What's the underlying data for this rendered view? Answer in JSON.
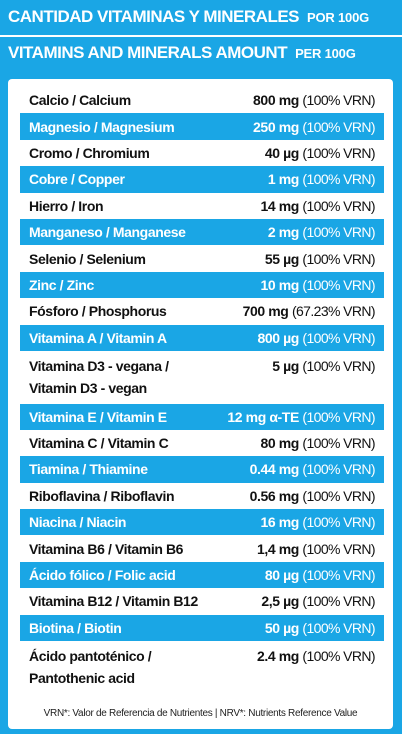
{
  "header": {
    "line1_title": "CANTIDAD VITAMINAS Y MINERALES",
    "line1_per": "POR 100G",
    "line2_title": "VITAMINS AND MINERALS AMOUNT",
    "line2_per": "PER 100G"
  },
  "rows": [
    {
      "name": "Calcio / Calcium",
      "amount": "800 mg",
      "pct": "(100% VRN)",
      "highlight": false
    },
    {
      "name": "Magnesio / Magnesium",
      "amount": "250 mg",
      "pct": "(100% VRN)",
      "highlight": true
    },
    {
      "name": "Cromo / Chromium",
      "amount": "40 µg",
      "pct": "(100% VRN)",
      "highlight": false
    },
    {
      "name": "Cobre / Copper",
      "amount": "1 mg",
      "pct": "(100% VRN)",
      "highlight": true
    },
    {
      "name": "Hierro / Iron",
      "amount": "14 mg",
      "pct": "(100% VRN)",
      "highlight": false
    },
    {
      "name": "Manganeso / Manganese",
      "amount": "2 mg",
      "pct": "(100% VRN)",
      "highlight": true
    },
    {
      "name": "Selenio / Selenium",
      "amount": "55 µg",
      "pct": "(100% VRN)",
      "highlight": false
    },
    {
      "name": "Zinc / Zinc",
      "amount": "10 mg",
      "pct": "(100% VRN)",
      "highlight": true
    },
    {
      "name": "Fósforo / Phosphorus",
      "amount": "700 mg",
      "pct": "(67.23% VRN)",
      "highlight": false
    },
    {
      "name": "Vitamina A / Vitamin A",
      "amount": "800 µg",
      "pct": "(100% VRN)",
      "highlight": true
    },
    {
      "name": "Vitamina D3 - vegana / Vitamin D3 - vegan",
      "amount": "5 µg",
      "pct": "(100% VRN)",
      "highlight": false,
      "tall": true
    },
    {
      "name": "Vitamina E / Vitamin E",
      "amount": "12 mg α-TE",
      "pct": "(100% VRN)",
      "highlight": true
    },
    {
      "name": "Vitamina C / Vitamin C",
      "amount": "80 mg",
      "pct": "(100% VRN)",
      "highlight": false
    },
    {
      "name": "Tiamina / Thiamine",
      "amount": "0.44 mg",
      "pct": "(100% VRN)",
      "highlight": true
    },
    {
      "name": "Riboflavina / Riboflavin",
      "amount": "0.56 mg",
      "pct": "(100% VRN)",
      "highlight": false
    },
    {
      "name": "Niacina / Niacin",
      "amount": "16 mg",
      "pct": "(100% VRN)",
      "highlight": true
    },
    {
      "name": "Vitamina B6 / Vitamin B6",
      "amount": "1,4 mg",
      "pct": "(100% VRN)",
      "highlight": false
    },
    {
      "name": "Ácido fólico / Folic acid",
      "amount": "80 µg",
      "pct": "(100% VRN)",
      "highlight": true
    },
    {
      "name": "Vitamina B12 / Vitamin B12",
      "amount": "2,5 µg",
      "pct": "(100% VRN)",
      "highlight": false
    },
    {
      "name": "Biotina / Biotin",
      "amount": "50 µg",
      "pct": "(100% VRN)",
      "highlight": true
    },
    {
      "name": "Ácido pantoténico / Pantothenic acid",
      "amount": "2.4 mg",
      "pct": "(100% VRN)",
      "highlight": false,
      "tall": true
    }
  ],
  "footer": "VRN*: Valor de Referencia de Nutrientes | NRV*: Nutrients Reference Value",
  "colors": {
    "accent": "#1aa6e5",
    "panel": "#ffffff",
    "text": "#111111"
  }
}
